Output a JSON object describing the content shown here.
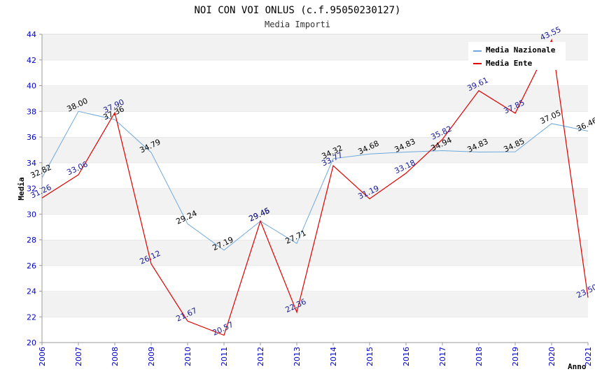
{
  "chart_data": {
    "type": "line",
    "title": "NOI CON VOI ONLUS (c.f.95050230127)",
    "subtitle": "Media Importi",
    "xlabel": "Anno",
    "ylabel": "Media",
    "ylim": [
      20,
      44
    ],
    "yticks": [
      "20",
      "22",
      "24",
      "26",
      "28",
      "30",
      "32",
      "34",
      "36",
      "38",
      "40",
      "42",
      "44"
    ],
    "categories": [
      "2006",
      "2007",
      "2008",
      "2009",
      "2010",
      "2011",
      "2012",
      "2013",
      "2014",
      "2015",
      "2016",
      "2017",
      "2018",
      "2019",
      "2020",
      "2021"
    ],
    "grid": "horizontal alternating bands",
    "legend_position": "top-right",
    "series": [
      {
        "name": "Media Nazionale",
        "color": "#6fa8dc",
        "label_color": "#000000",
        "values": [
          32.82,
          38.0,
          37.36,
          34.79,
          29.24,
          27.19,
          29.45,
          27.71,
          34.32,
          34.68,
          34.83,
          34.94,
          34.83,
          34.85,
          37.05,
          36.46
        ],
        "labels": [
          "32.82",
          "38.00",
          "37.36",
          "34.79",
          "29.24",
          "27.19",
          "29.45",
          "27.71",
          "34.32",
          "34.68",
          "34.83",
          "34.94",
          "34.83",
          "34.85",
          "37.05",
          "36.46"
        ]
      },
      {
        "name": "Media Ente",
        "color": "#e00000",
        "label_color": "#1a1a99",
        "values": [
          31.26,
          33.06,
          37.9,
          26.12,
          21.67,
          20.57,
          29.46,
          22.36,
          33.77,
          31.19,
          33.18,
          35.82,
          39.61,
          37.85,
          43.55,
          23.5
        ],
        "labels": [
          "31.26",
          "33.06",
          "37.90",
          "26.12",
          "21.67",
          "20.57",
          "29.46",
          "22.36",
          "33.77",
          "31.19",
          "33.18",
          "35.82",
          "39.61",
          "37.85",
          "43.55",
          "23.50"
        ]
      }
    ]
  }
}
